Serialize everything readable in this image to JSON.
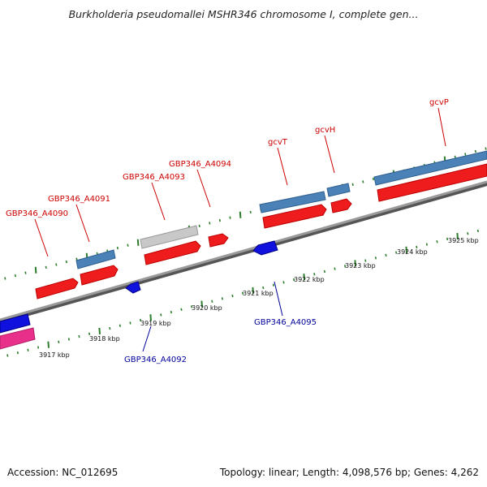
{
  "title": "Burkholderia pseudomallei MSHR346 chromosome I, complete gen...",
  "footer": {
    "accession": "Accession: NC_012695",
    "summary": "Topology: linear; Length: 4,098,576 bp; Genes: 4,262"
  },
  "colors": {
    "forward_gene": "#ee1c1c",
    "reverse_gene": "#1111dd",
    "cds_block": "#4a82b8",
    "pseudo_block": "#c4c4c4",
    "pink_block": "#e8308a",
    "forward_label": "#cc0000",
    "reverse_label": "#000099",
    "tick": "#2e7d2e",
    "backbone": "#8a8a8a"
  },
  "kbp_labels": [
    "3917 kbp",
    "3918 kbp",
    "3919 kbp",
    "3920 kbp",
    "3921 kbp",
    "3922 kbp",
    "3923 kbp",
    "3924 kbp",
    "3925 kbp"
  ],
  "forward_labels": [
    "GBP346_A4090",
    "GBP346_A4091",
    "GBP346_A4093",
    "GBP346_A4094",
    "gcvT",
    "gcvH",
    "gcvP"
  ],
  "reverse_labels": [
    "GBP346_A4092",
    "GBP346_A4095"
  ]
}
